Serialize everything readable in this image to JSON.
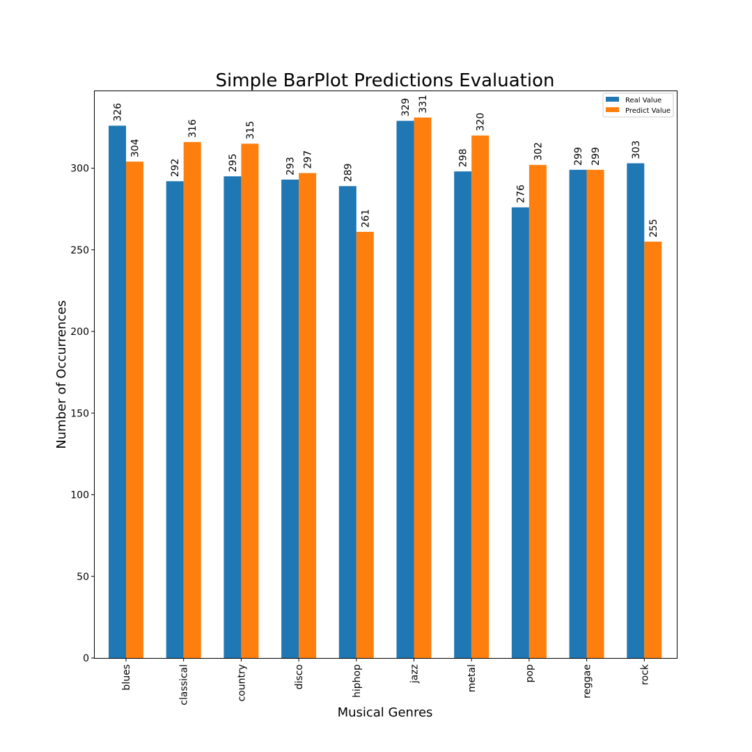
{
  "chart_data": {
    "type": "bar",
    "title": "Simple BarPlot Predictions Evaluation",
    "xlabel": "Musical Genres",
    "ylabel": "Number of Occurrences",
    "categories": [
      "blues",
      "classical",
      "country",
      "disco",
      "hiphop",
      "jazz",
      "metal",
      "pop",
      "reggae",
      "rock"
    ],
    "series": [
      {
        "name": "Real Value",
        "color": "#1f77b4",
        "values": [
          326,
          292,
          295,
          293,
          289,
          329,
          298,
          276,
          299,
          303
        ]
      },
      {
        "name": "Predict Value",
        "color": "#ff7f0e",
        "values": [
          304,
          316,
          315,
          297,
          261,
          331,
          320,
          302,
          299,
          255
        ]
      }
    ],
    "yticks": [
      0,
      50,
      100,
      150,
      200,
      250,
      300
    ],
    "ylim": [
      0,
      347.55
    ],
    "grid": false,
    "legend_position": "top-right"
  }
}
